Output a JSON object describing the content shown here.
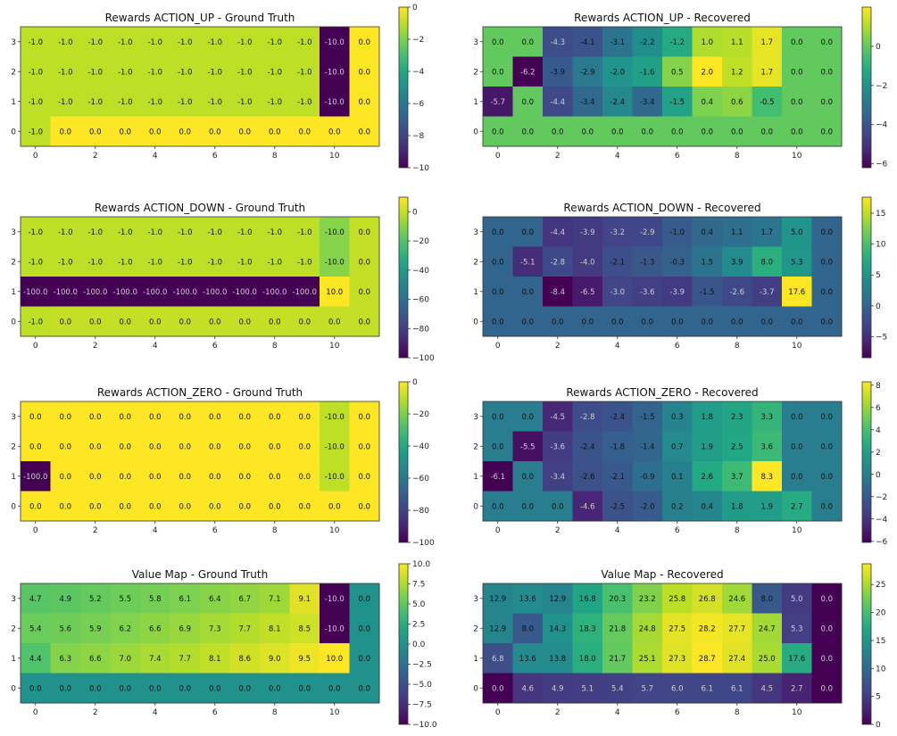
{
  "chart_data": [
    {
      "type": "heatmap",
      "title": "Rewards ACTION_UP - Ground Truth",
      "colorbar_range": [
        -10,
        0
      ],
      "colorbar_ticks": [
        0,
        -2,
        -4,
        -6,
        -8,
        -10
      ],
      "colorbar_tick_labels": [
        "0",
        "−2",
        "−4",
        "−6",
        "−8",
        "−10"
      ],
      "x_ticks": [
        0,
        2,
        4,
        6,
        8,
        10
      ],
      "y_ticks": [
        3,
        2,
        1,
        0
      ],
      "rows": [
        [
          -1.0,
          -1.0,
          -1.0,
          -1.0,
          -1.0,
          -1.0,
          -1.0,
          -1.0,
          -1.0,
          -1.0,
          -10.0,
          0.0
        ],
        [
          -1.0,
          -1.0,
          -1.0,
          -1.0,
          -1.0,
          -1.0,
          -1.0,
          -1.0,
          -1.0,
          -1.0,
          -10.0,
          0.0
        ],
        [
          -1.0,
          -1.0,
          -1.0,
          -1.0,
          -1.0,
          -1.0,
          -1.0,
          -1.0,
          -1.0,
          -1.0,
          -10.0,
          0.0
        ],
        [
          -1.0,
          0.0,
          0.0,
          0.0,
          0.0,
          0.0,
          0.0,
          0.0,
          0.0,
          0.0,
          0.0,
          0.0
        ]
      ]
    },
    {
      "type": "heatmap",
      "title": "Rewards ACTION_UP - Recovered",
      "colorbar_range": [
        -6.2,
        2.0
      ],
      "colorbar_ticks": [
        0,
        -2,
        -4,
        -6
      ],
      "colorbar_tick_labels": [
        "0",
        "−2",
        "−4",
        "−6"
      ],
      "x_ticks": [
        0,
        2,
        4,
        6,
        8,
        10
      ],
      "y_ticks": [
        3,
        2,
        1,
        0
      ],
      "rows": [
        [
          0.0,
          0.0,
          -4.3,
          -4.1,
          -3.1,
          -2.2,
          -1.2,
          1.0,
          1.1,
          1.7,
          0.0,
          0.0
        ],
        [
          0.0,
          -6.2,
          -3.9,
          -2.9,
          -2.0,
          -1.6,
          0.5,
          2.0,
          1.2,
          1.7,
          0.0,
          0.0
        ],
        [
          -5.7,
          0.0,
          -4.4,
          -3.4,
          -2.4,
          -3.4,
          -1.5,
          0.4,
          0.6,
          -0.5,
          0.0,
          0.0
        ],
        [
          0.0,
          0.0,
          0.0,
          0.0,
          0.0,
          0.0,
          0.0,
          0.0,
          0.0,
          0.0,
          0.0,
          0.0
        ]
      ]
    },
    {
      "type": "heatmap",
      "title": "Rewards ACTION_DOWN - Ground Truth",
      "colorbar_range": [
        -100,
        10
      ],
      "colorbar_ticks": [
        0,
        -20,
        -40,
        -60,
        -80,
        -100
      ],
      "colorbar_tick_labels": [
        "0",
        "−20",
        "−40",
        "−60",
        "−80",
        "−100"
      ],
      "x_ticks": [
        0,
        2,
        4,
        6,
        8,
        10
      ],
      "y_ticks": [
        3,
        2,
        1,
        0
      ],
      "rows": [
        [
          -1.0,
          -1.0,
          -1.0,
          -1.0,
          -1.0,
          -1.0,
          -1.0,
          -1.0,
          -1.0,
          -1.0,
          -10.0,
          0.0
        ],
        [
          -1.0,
          -1.0,
          -1.0,
          -1.0,
          -1.0,
          -1.0,
          -1.0,
          -1.0,
          -1.0,
          -1.0,
          -10.0,
          0.0
        ],
        [
          -100.0,
          -100.0,
          -100.0,
          -100.0,
          -100.0,
          -100.0,
          -100.0,
          -100.0,
          -100.0,
          -100.0,
          10.0,
          0.0
        ],
        [
          -1.0,
          0.0,
          0.0,
          0.0,
          0.0,
          0.0,
          0.0,
          0.0,
          0.0,
          0.0,
          0.0,
          0.0
        ]
      ]
    },
    {
      "type": "heatmap",
      "title": "Rewards ACTION_DOWN - Recovered",
      "colorbar_range": [
        -8.4,
        17.6
      ],
      "colorbar_ticks": [
        15,
        10,
        5,
        0,
        -5
      ],
      "colorbar_tick_labels": [
        "15",
        "10",
        "5",
        "0",
        "−5"
      ],
      "x_ticks": [
        0,
        2,
        4,
        6,
        8,
        10
      ],
      "y_ticks": [
        3,
        2,
        1,
        0
      ],
      "rows": [
        [
          0.0,
          0.0,
          -4.4,
          -3.9,
          -3.2,
          -2.9,
          -1.0,
          0.4,
          1.1,
          1.7,
          5.0,
          0.0
        ],
        [
          0.0,
          -5.1,
          -2.8,
          -4.0,
          -2.1,
          -1.3,
          -0.3,
          1.5,
          3.9,
          8.0,
          5.3,
          0.0
        ],
        [
          0.0,
          0.0,
          -8.4,
          -6.5,
          -3.0,
          -3.6,
          -3.9,
          -1.5,
          -2.6,
          -3.7,
          17.6,
          0.0
        ],
        [
          0.0,
          0.0,
          0.0,
          0.0,
          0.0,
          0.0,
          0.0,
          0.0,
          0.0,
          0.0,
          0.0,
          0.0
        ]
      ]
    },
    {
      "type": "heatmap",
      "title": "Rewards ACTION_ZERO - Ground Truth",
      "colorbar_range": [
        -100,
        0
      ],
      "colorbar_ticks": [
        0,
        -20,
        -40,
        -60,
        -80,
        -100
      ],
      "colorbar_tick_labels": [
        "0",
        "−20",
        "−40",
        "−60",
        "−80",
        "−100"
      ],
      "x_ticks": [
        0,
        2,
        4,
        6,
        8,
        10
      ],
      "y_ticks": [
        3,
        2,
        1,
        0
      ],
      "rows": [
        [
          0.0,
          0.0,
          0.0,
          0.0,
          0.0,
          0.0,
          0.0,
          0.0,
          0.0,
          0.0,
          -10.0,
          0.0
        ],
        [
          0.0,
          0.0,
          0.0,
          0.0,
          0.0,
          0.0,
          0.0,
          0.0,
          0.0,
          0.0,
          -10.0,
          0.0
        ],
        [
          -100.0,
          0.0,
          0.0,
          0.0,
          0.0,
          0.0,
          0.0,
          0.0,
          0.0,
          0.0,
          -10.0,
          0.0
        ],
        [
          0.0,
          0.0,
          0.0,
          0.0,
          0.0,
          0.0,
          0.0,
          0.0,
          0.0,
          0.0,
          0.0,
          0.0
        ]
      ]
    },
    {
      "type": "heatmap",
      "title": "Rewards ACTION_ZERO - Recovered",
      "colorbar_range": [
        -6.1,
        8.3
      ],
      "colorbar_ticks": [
        8,
        6,
        4,
        2,
        0,
        -2,
        -4,
        -6
      ],
      "colorbar_tick_labels": [
        "8",
        "6",
        "4",
        "2",
        "0",
        "−2",
        "−4",
        "−6"
      ],
      "x_ticks": [
        0,
        2,
        4,
        6,
        8,
        10
      ],
      "y_ticks": [
        3,
        2,
        1,
        0
      ],
      "rows": [
        [
          0.0,
          0.0,
          -4.5,
          -2.8,
          -2.4,
          -1.5,
          0.3,
          1.8,
          2.3,
          3.3,
          0.0,
          0.0
        ],
        [
          0.0,
          -5.5,
          -3.6,
          -2.4,
          -1.8,
          -1.4,
          0.7,
          1.9,
          2.5,
          3.6,
          0.0,
          0.0
        ],
        [
          -6.1,
          0.0,
          -3.4,
          -2.6,
          -2.1,
          -0.9,
          0.1,
          2.6,
          3.7,
          8.3,
          0.0,
          0.0
        ],
        [
          0.0,
          0.0,
          0.0,
          -4.6,
          -2.5,
          -2.0,
          0.2,
          0.4,
          1.8,
          1.9,
          2.7,
          0.0
        ]
      ]
    },
    {
      "type": "heatmap",
      "title": "Value Map - Ground Truth",
      "colorbar_range": [
        -10,
        10
      ],
      "colorbar_ticks": [
        10,
        7.5,
        5,
        2.5,
        0,
        -2.5,
        -5,
        -7.5,
        -10
      ],
      "colorbar_tick_labels": [
        "10.0",
        "7.5",
        "5.0",
        "2.5",
        "0.0",
        "−2.5",
        "−5.0",
        "−7.5",
        "−10.0"
      ],
      "x_ticks": [
        0,
        2,
        4,
        6,
        8,
        10
      ],
      "y_ticks": [
        3,
        2,
        1,
        0
      ],
      "rows": [
        [
          4.7,
          4.9,
          5.2,
          5.5,
          5.8,
          6.1,
          6.4,
          6.7,
          7.1,
          9.1,
          -10.0,
          0.0
        ],
        [
          5.4,
          5.6,
          5.9,
          6.2,
          6.6,
          6.9,
          7.3,
          7.7,
          8.1,
          8.5,
          -10.0,
          0.0
        ],
        [
          4.4,
          6.3,
          6.6,
          7.0,
          7.4,
          7.7,
          8.1,
          8.6,
          9.0,
          9.5,
          10.0,
          0.0
        ],
        [
          0.0,
          0.0,
          0.0,
          0.0,
          0.0,
          0.0,
          0.0,
          0.0,
          0.0,
          0.0,
          0.0,
          0.0
        ]
      ]
    },
    {
      "type": "heatmap",
      "title": "Value Map - Recovered",
      "colorbar_range": [
        0,
        28.7
      ],
      "colorbar_ticks": [
        25,
        20,
        15,
        10,
        5,
        0
      ],
      "colorbar_tick_labels": [
        "25",
        "20",
        "15",
        "10",
        "5",
        "0"
      ],
      "x_ticks": [
        0,
        2,
        4,
        6,
        8,
        10
      ],
      "y_ticks": [
        3,
        2,
        1,
        0
      ],
      "rows": [
        [
          12.9,
          13.6,
          12.9,
          16.8,
          20.3,
          23.2,
          25.8,
          26.8,
          24.6,
          8.0,
          5.0,
          0.0
        ],
        [
          12.9,
          8.0,
          14.3,
          18.3,
          21.8,
          24.8,
          27.5,
          28.2,
          27.7,
          24.7,
          5.3,
          0.0
        ],
        [
          6.8,
          13.6,
          13.8,
          18.0,
          21.7,
          25.1,
          27.3,
          28.7,
          27.4,
          25.0,
          17.6,
          0.0
        ],
        [
          0.0,
          4.6,
          4.9,
          5.1,
          5.4,
          5.7,
          6.0,
          6.1,
          6.1,
          4.5,
          2.7,
          0.0
        ]
      ]
    }
  ]
}
